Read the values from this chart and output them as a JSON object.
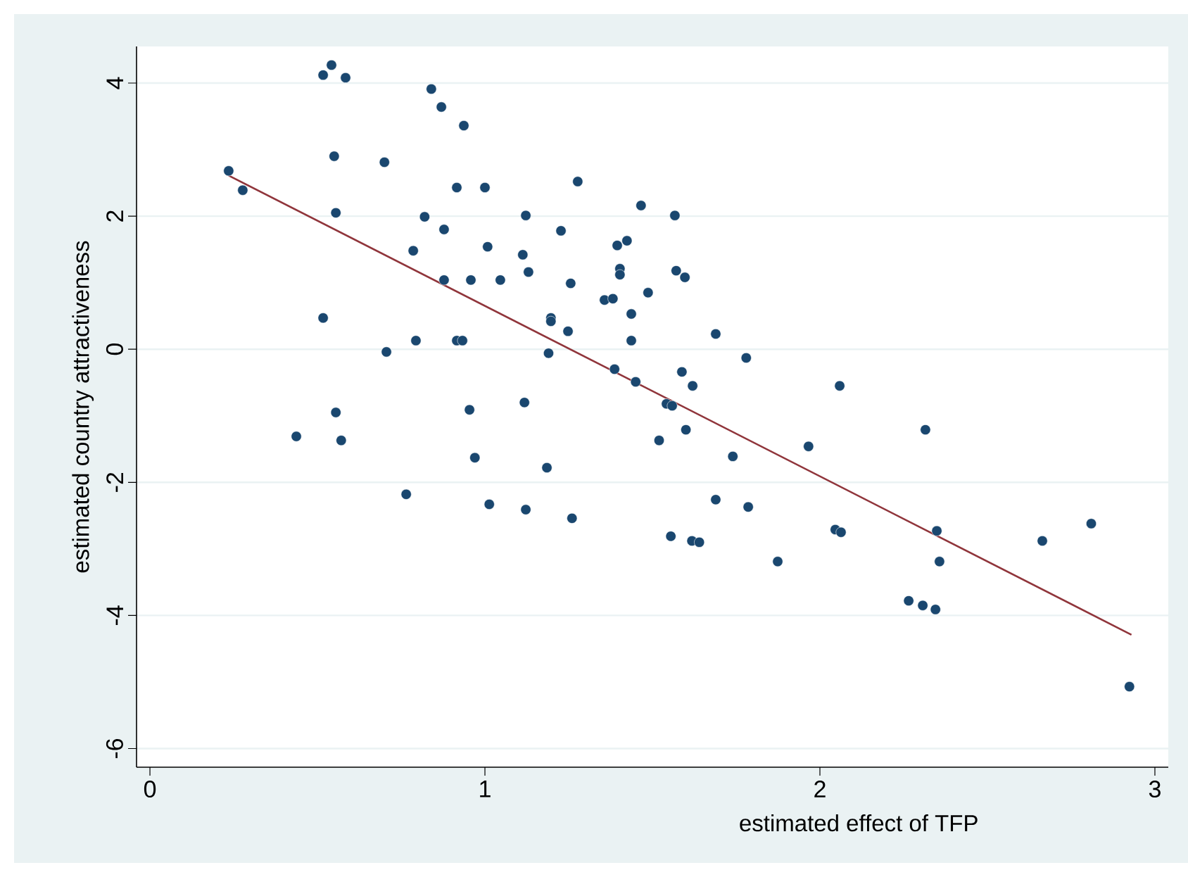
{
  "chart_data": {
    "type": "scatter",
    "xlabel": "estimated effect of TFP",
    "ylabel": "estimated country attractiveness",
    "xlim": [
      -0.04,
      3.04
    ],
    "ylim": [
      -6.28,
      4.55
    ],
    "xticks": [
      0,
      1,
      2,
      3
    ],
    "yticks": [
      -6,
      -4,
      -2,
      0,
      2,
      4
    ],
    "grid": "y",
    "series": [
      {
        "color": "#1a476f",
        "marker": "circle",
        "x": [
          0.235,
          0.277,
          0.437,
          0.517,
          0.517,
          0.542,
          0.584,
          0.55,
          0.555,
          0.555,
          0.571,
          0.7,
          0.706,
          0.765,
          0.786,
          0.794,
          0.82,
          0.84,
          0.87,
          0.878,
          0.878,
          0.937,
          0.916,
          0.916,
          0.933,
          0.954,
          0.958,
          0.97,
          1.0,
          1.008,
          1.013,
          1.046,
          1.113,
          1.122,
          1.118,
          1.122,
          1.13,
          1.185,
          1.19,
          1.197,
          1.197,
          1.227,
          1.248,
          1.256,
          1.26,
          1.277,
          1.357,
          1.382,
          1.387,
          1.395,
          1.403,
          1.403,
          1.424,
          1.437,
          1.437,
          1.45,
          1.466,
          1.487,
          1.52,
          1.542,
          1.559,
          1.555,
          1.567,
          1.571,
          1.588,
          1.597,
          1.6,
          1.62,
          1.618,
          1.64,
          1.689,
          1.689,
          1.74,
          1.78,
          1.786,
          1.874,
          1.966,
          2.046,
          2.063,
          2.059,
          2.265,
          2.307,
          2.315,
          2.345,
          2.349,
          2.357,
          2.664,
          2.81,
          2.924
        ],
        "values": [
          2.68,
          2.39,
          -1.31,
          0.47,
          4.12,
          4.27,
          4.08,
          2.9,
          2.05,
          -0.95,
          -1.37,
          2.81,
          -0.04,
          -2.18,
          1.48,
          0.13,
          1.99,
          3.91,
          3.64,
          1.8,
          1.04,
          3.36,
          2.43,
          0.13,
          0.13,
          -0.91,
          1.04,
          -1.63,
          2.43,
          1.54,
          -2.33,
          1.04,
          1.42,
          2.01,
          -0.8,
          -2.41,
          1.16,
          -1.78,
          -0.06,
          0.47,
          0.42,
          1.78,
          0.27,
          0.99,
          -2.54,
          2.52,
          0.74,
          0.76,
          -0.3,
          1.56,
          1.21,
          1.12,
          1.63,
          0.53,
          0.13,
          -0.49,
          2.16,
          0.85,
          -1.37,
          -0.82,
          -0.85,
          -2.81,
          2.01,
          1.18,
          -0.34,
          1.08,
          -1.21,
          -0.55,
          -2.88,
          -2.9,
          0.23,
          -2.26,
          -1.61,
          -0.13,
          -2.37,
          -3.19,
          -1.46,
          -2.71,
          -2.75,
          -0.55,
          -3.78,
          -3.85,
          -1.21,
          -3.91,
          -2.73,
          -3.19,
          -2.88,
          -2.62,
          -5.07
        ]
      },
      {
        "type": "line",
        "color": "#90353b",
        "marker": "none",
        "line_style": "solid",
        "x": [
          0.235,
          2.93
        ],
        "values": [
          2.61,
          -4.29
        ]
      }
    ]
  }
}
